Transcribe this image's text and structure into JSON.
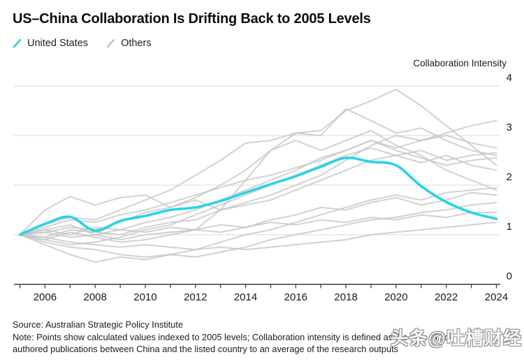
{
  "header": {
    "title": "US–China Collaboration Is Drifting Back to 2005 Levels"
  },
  "legend": {
    "items": [
      {
        "label": "United States",
        "color": "#29D3E5"
      },
      {
        "label": "Others",
        "color": "#BDBDBD"
      }
    ]
  },
  "chart_data": {
    "type": "line",
    "title": "US–China Collaboration Is Drifting Back to 2005 Levels",
    "xlabel": "",
    "ylabel": "Collaboration Intensity",
    "x": [
      2005,
      2006,
      2007,
      2008,
      2009,
      2010,
      2011,
      2012,
      2013,
      2014,
      2015,
      2016,
      2017,
      2018,
      2019,
      2020,
      2021,
      2022,
      2023,
      2024
    ],
    "x_tick_labels": [
      "2006",
      "2008",
      "2010",
      "2012",
      "2014",
      "2016",
      "2018",
      "2020",
      "2022",
      "2024"
    ],
    "ylim": [
      0,
      4
    ],
    "yticks": [
      0,
      1,
      2,
      3,
      4
    ],
    "grid": "horizontal",
    "legend_position": "top-left",
    "accent_color": "#29D3E5",
    "others_color": "#C6C6C6",
    "series": [
      {
        "name": "United States",
        "color": "#29D3E5",
        "values": [
          1.0,
          1.22,
          1.36,
          1.08,
          1.28,
          1.38,
          1.5,
          1.55,
          1.68,
          1.85,
          2.02,
          2.18,
          2.37,
          2.55,
          2.47,
          2.4,
          1.98,
          1.66,
          1.45,
          1.32
        ]
      }
    ],
    "others": {
      "name": "Others",
      "color": "#C6C6C6",
      "lines": [
        [
          1.0,
          1.05,
          1.15,
          1.1,
          1.25,
          1.45,
          1.55,
          1.75,
          2.0,
          2.3,
          2.7,
          3.05,
          3.1,
          3.5,
          3.7,
          3.93,
          3.6,
          3.2,
          2.8,
          2.4
        ],
        [
          1.0,
          1.2,
          1.35,
          1.3,
          1.5,
          1.7,
          1.9,
          2.2,
          2.5,
          2.85,
          2.9,
          3.05,
          3.0,
          3.54,
          3.3,
          3.05,
          3.15,
          2.9,
          2.7,
          2.6
        ],
        [
          1.0,
          0.95,
          1.1,
          1.05,
          1.0,
          1.15,
          1.25,
          1.3,
          1.5,
          1.65,
          1.8,
          2.0,
          2.2,
          2.5,
          2.8,
          3.0,
          2.9,
          3.05,
          3.2,
          3.3
        ],
        [
          1.0,
          1.15,
          1.3,
          1.25,
          1.4,
          1.5,
          1.65,
          1.8,
          1.95,
          2.1,
          2.2,
          2.35,
          2.5,
          2.7,
          2.9,
          2.75,
          2.9,
          3.0,
          2.85,
          2.75
        ],
        [
          1.0,
          0.9,
          0.8,
          0.85,
          0.95,
          1.1,
          1.2,
          1.4,
          1.6,
          1.8,
          2.0,
          2.2,
          2.4,
          2.6,
          2.75,
          2.6,
          2.7,
          2.5,
          2.6,
          2.65
        ],
        [
          1.0,
          1.1,
          1.0,
          1.15,
          1.1,
          1.25,
          1.35,
          1.5,
          1.7,
          1.9,
          2.1,
          2.3,
          2.55,
          2.7,
          2.9,
          2.7,
          2.55,
          2.4,
          2.5,
          2.55
        ],
        [
          1.0,
          1.5,
          1.77,
          1.6,
          1.75,
          1.8,
          1.55,
          1.7,
          1.5,
          1.6,
          1.7,
          1.9,
          2.1,
          2.3,
          2.5,
          2.6,
          2.45,
          2.6,
          2.4,
          2.3
        ],
        [
          1.0,
          0.8,
          0.6,
          0.45,
          0.55,
          0.5,
          0.6,
          0.7,
          0.85,
          1.0,
          1.1,
          1.25,
          1.4,
          1.55,
          1.7,
          1.8,
          1.7,
          1.85,
          1.9,
          1.95
        ],
        [
          1.0,
          0.9,
          1.05,
          0.95,
          0.85,
          0.9,
          1.0,
          1.1,
          1.05,
          1.15,
          1.3,
          1.4,
          1.55,
          1.5,
          1.65,
          1.75,
          1.6,
          1.7,
          1.85,
          1.8
        ],
        [
          1.0,
          0.85,
          0.75,
          0.7,
          0.6,
          0.55,
          0.6,
          0.55,
          0.65,
          0.75,
          0.9,
          1.0,
          1.1,
          1.2,
          1.3,
          1.35,
          1.45,
          1.5,
          1.6,
          1.65
        ],
        [
          1.0,
          1.05,
          0.95,
          1.0,
          1.1,
          1.05,
          1.15,
          1.1,
          1.2,
          1.15,
          1.25,
          1.2,
          1.3,
          1.25,
          1.35,
          1.3,
          1.4,
          1.35,
          1.45,
          1.45
        ],
        [
          1.0,
          0.95,
          0.85,
          0.8,
          0.75,
          0.8,
          0.75,
          0.7,
          0.75,
          0.7,
          0.75,
          0.8,
          0.85,
          0.9,
          1.0,
          1.05,
          1.1,
          1.15,
          1.2,
          1.25
        ],
        [
          1.0,
          1.1,
          1.2,
          1.0,
          0.9,
          1.0,
          1.05,
          1.1,
          1.5,
          2.1,
          2.7,
          2.9,
          2.7,
          2.9,
          3.1,
          2.8,
          2.6,
          2.3,
          2.1,
          1.9
        ]
      ]
    }
  },
  "footer": {
    "source": "Source: Australian Strategic Policy Institute",
    "note_lines": [
      "Note: Points show calculated values indexed to 2005 levels; Collaboration intensity is defined as the ratio of co-",
      "authored publications between China and the listed country to an average of the research outputs"
    ]
  },
  "watermark": {
    "text": "头条@吐槽财经"
  }
}
